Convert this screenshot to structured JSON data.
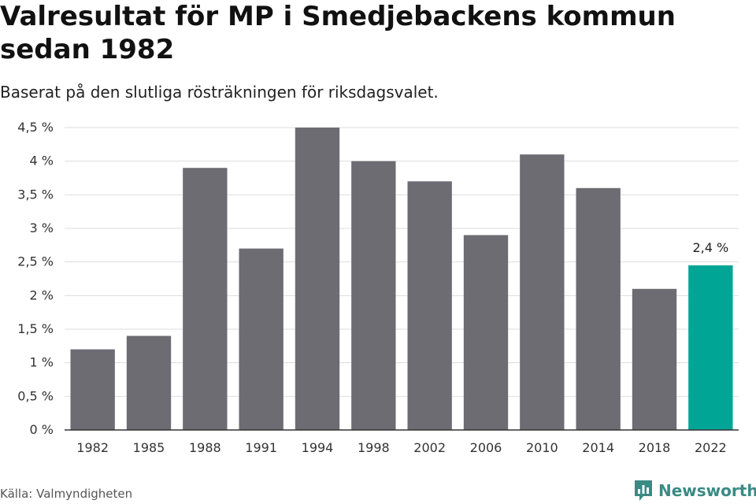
{
  "title": "Valresultat för MP i Smedjebackens kommun sedan 1982",
  "subtitle": "Baserat på den slutliga rösträkningen för riksdagsvalet.",
  "source": "Källa: Valmyndigheten",
  "brand": {
    "name": "Newsworthy",
    "icon": "newsworthy-logo-icon",
    "color": "#3a8a85"
  },
  "colors": {
    "bar": "#6d6c72",
    "highlight": "#00a596",
    "grid": "#dddddd",
    "axis": "#333333"
  },
  "chart_data": {
    "type": "bar",
    "title": "Valresultat för MP i Smedjebackens kommun sedan 1982",
    "subtitle": "Baserat på den slutliga rösträkningen för riksdagsvalet.",
    "xlabel": "",
    "ylabel": "",
    "categories": [
      "1982",
      "1985",
      "1988",
      "1991",
      "1994",
      "1998",
      "2002",
      "2006",
      "2010",
      "2014",
      "2018",
      "2022"
    ],
    "values": [
      1.2,
      1.4,
      3.9,
      2.7,
      4.5,
      4.0,
      3.7,
      2.9,
      4.1,
      3.6,
      2.1,
      2.45
    ],
    "ylim": [
      0,
      4.5
    ],
    "yticks": [
      0,
      0.5,
      1,
      1.5,
      2,
      2.5,
      3,
      3.5,
      4,
      4.5
    ],
    "ytick_labels": [
      "0 %",
      "0,5 %",
      "1 %",
      "1,5 %",
      "2 %",
      "2,5 %",
      "3 %",
      "3,5 %",
      "4 %",
      "4,5 %"
    ],
    "grid": true,
    "highlight_index": 11,
    "annotation": {
      "index": 11,
      "label": "2,4 %"
    }
  }
}
